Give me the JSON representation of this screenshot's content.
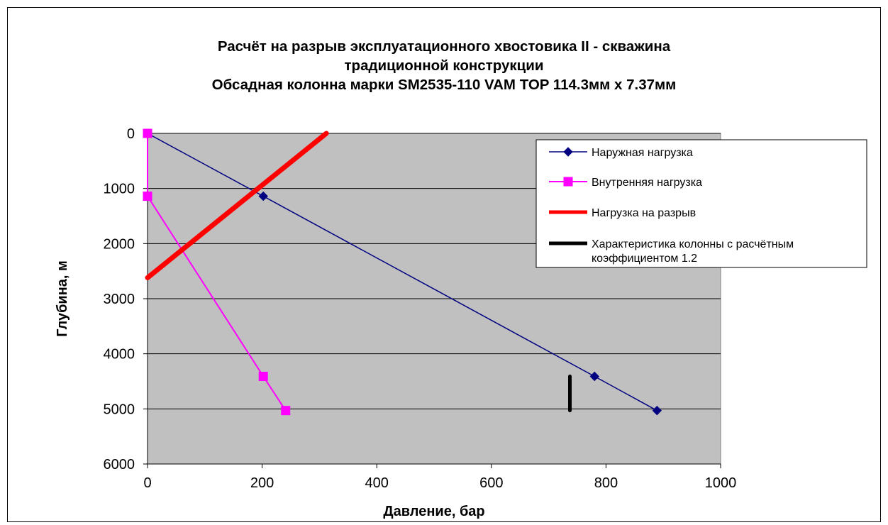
{
  "chart_data": {
    "type": "line",
    "title_lines": [
      "Расчёт на разрыв эксплуатационного хвостовика II - скважина",
      "традиционной конструкции",
      "Обсадная колонна марки SM2535-110 VAM TOP 114.3мм х 7.37мм"
    ],
    "xlabel": "Давление, бар",
    "ylabel": "Глубина, м",
    "xlim": [
      0,
      1000
    ],
    "ylim": [
      6000,
      0
    ],
    "y_reversed": true,
    "x_ticks": [
      "0",
      "200",
      "400",
      "600",
      "800",
      "1000"
    ],
    "y_ticks": [
      "0",
      "1000",
      "2000",
      "3000",
      "4000",
      "5000",
      "6000"
    ],
    "grid": "horizontal",
    "plot_background": "#c0c0c0",
    "legend_position": "right",
    "series": [
      {
        "name": "Наружная нагрузка",
        "color": "#000080",
        "marker": "diamond",
        "points": [
          [
            0,
            0
          ],
          [
            202,
            1140
          ],
          [
            780,
            4410
          ],
          [
            889,
            5030
          ]
        ]
      },
      {
        "name": "Внутренняя нагрузка",
        "color": "#ff00ff",
        "marker": "square",
        "points": [
          [
            0,
            0
          ],
          [
            0,
            1140
          ],
          [
            202,
            4410
          ],
          [
            241,
            5030
          ]
        ]
      },
      {
        "name": "Нагрузка на разрыв",
        "color": "#ff0000",
        "marker": "none",
        "points": [
          [
            0,
            2620
          ],
          [
            312,
            0
          ]
        ]
      },
      {
        "name": "Характеристика колонны с расчётным коэффициентом 1.2",
        "color": "#000000",
        "marker": "none",
        "points": [
          [
            737,
            4410
          ],
          [
            737,
            5030
          ]
        ]
      }
    ]
  }
}
